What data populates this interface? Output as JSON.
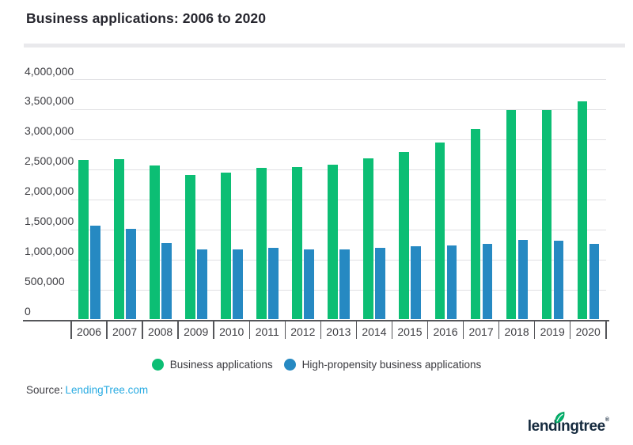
{
  "title": "Business applications: 2006 to 2020",
  "source": {
    "prefix": "Source:",
    "link": "LendingTree.com"
  },
  "logo": {
    "part1": "lend",
    "part2": "i",
    "part3": "ngtree",
    "reg": "®"
  },
  "colors": {
    "green": "#0cbe74",
    "blue": "#2689c2",
    "axis": "#55565a",
    "gridline": "#e0e0e3",
    "link_blue": "#29abe2",
    "logo_navy": "#152a3e",
    "leaf_green": "#00b46e"
  },
  "chart_data": {
    "type": "bar",
    "title": "Business applications: 2006 to 2020",
    "categories": [
      "2006",
      "2007",
      "2008",
      "2009",
      "2010",
      "2011",
      "2012",
      "2013",
      "2014",
      "2015",
      "2016",
      "2017",
      "2018",
      "2019",
      "2020"
    ],
    "series": [
      {
        "name": "Business applications",
        "color": "#0cbe74",
        "values": [
          2650000,
          2670000,
          2560000,
          2400000,
          2450000,
          2530000,
          2540000,
          2580000,
          2680000,
          2790000,
          2940000,
          3170000,
          3480000,
          3480000,
          3630000
        ]
      },
      {
        "name": "High-propensity business applications",
        "color": "#2689c2",
        "values": [
          1560000,
          1510000,
          1270000,
          1170000,
          1170000,
          1190000,
          1170000,
          1170000,
          1190000,
          1220000,
          1230000,
          1260000,
          1330000,
          1310000,
          1260000
        ]
      }
    ],
    "xlabel": "",
    "ylabel": "",
    "ylim": [
      0,
      4000000
    ],
    "ytick_step": 500000,
    "ytick_labels": [
      "4,000,000",
      "3,500,000",
      "3,000,000",
      "2,500,000",
      "2,000,000",
      "1,500,000",
      "1,000,000",
      "500,000",
      "0"
    ],
    "grid": "horizontal",
    "legend_position": "bottom"
  }
}
